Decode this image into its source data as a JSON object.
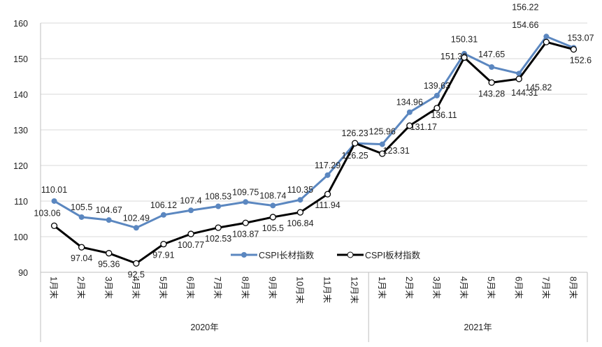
{
  "chart_data": {
    "type": "line",
    "ylim": [
      90,
      160
    ],
    "yticks": [
      90,
      100,
      110,
      120,
      130,
      140,
      150,
      160
    ],
    "grid": true,
    "legend_position": "bottom-center-inside",
    "groups": [
      {
        "label": "2020年",
        "count": 12
      },
      {
        "label": "2021年",
        "count": 8
      }
    ],
    "categories": [
      "1月末",
      "2月末",
      "3月末",
      "4月末",
      "5月末",
      "6月末",
      "7月末",
      "8月末",
      "9月末",
      "10月末",
      "11月末",
      "12月末",
      "1月末",
      "2月末",
      "3月末",
      "4月末",
      "5月末",
      "6月末",
      "7月末",
      "8月末"
    ],
    "series": [
      {
        "name": "CSPI长材指数",
        "color": "#5b87c0",
        "marker": "filled",
        "values": [
          110.01,
          105.5,
          104.67,
          102.49,
          106.12,
          107.4,
          108.53,
          109.75,
          108.74,
          110.35,
          117.29,
          126.23,
          125.96,
          134.96,
          139.63,
          151.39,
          147.65,
          145.82,
          156.22,
          153.07
        ]
      },
      {
        "name": "CSPI板材指数",
        "color": "#000000",
        "marker": "open",
        "values": [
          103.06,
          97.04,
          95.36,
          92.5,
          97.91,
          100.77,
          102.53,
          103.87,
          105.5,
          106.84,
          111.94,
          126.25,
          123.31,
          131.17,
          136.11,
          150.31,
          143.28,
          144.31,
          154.66,
          152.6
        ]
      }
    ]
  }
}
